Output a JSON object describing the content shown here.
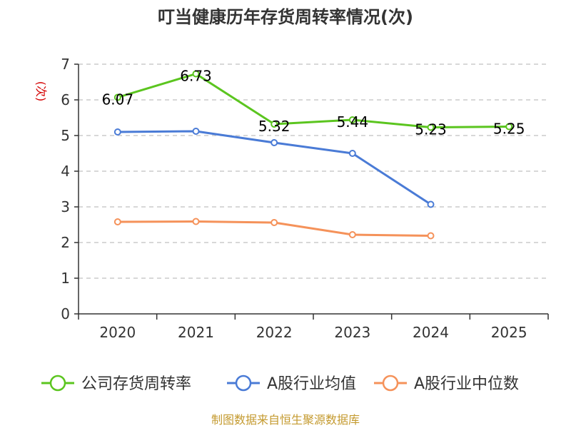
{
  "chart_data": {
    "type": "line",
    "title": "叮当健康历年存货周转率情况(次)",
    "ylabel": "(次)",
    "xlabel": "",
    "categories": [
      "2020",
      "2021",
      "2022",
      "2023",
      "2024",
      "2025"
    ],
    "ylim": [
      0,
      7
    ],
    "yticks": [
      "0",
      "1",
      "2",
      "3",
      "4",
      "5",
      "6",
      "7"
    ],
    "grid": true,
    "legend_position": "bottom",
    "series": [
      {
        "name": "公司存货周转率",
        "color": "#5bc51f",
        "values": [
          6.07,
          6.73,
          5.32,
          5.44,
          5.23,
          5.25
        ],
        "labels": [
          "6.07",
          "6.73",
          "5.32",
          "5.44",
          "5.23",
          "5.25"
        ]
      },
      {
        "name": "A股行业均值",
        "color": "#4a7bd6",
        "values": [
          5.1,
          5.12,
          4.8,
          4.5,
          3.07,
          null
        ]
      },
      {
        "name": "A股行业中位数",
        "color": "#f5925a",
        "values": [
          2.58,
          2.59,
          2.56,
          2.22,
          2.19,
          null
        ]
      }
    ],
    "source": "制图数据来自恒生聚源数据库",
    "ylabel_color": "#d40000",
    "source_color": "#c49a2f"
  }
}
